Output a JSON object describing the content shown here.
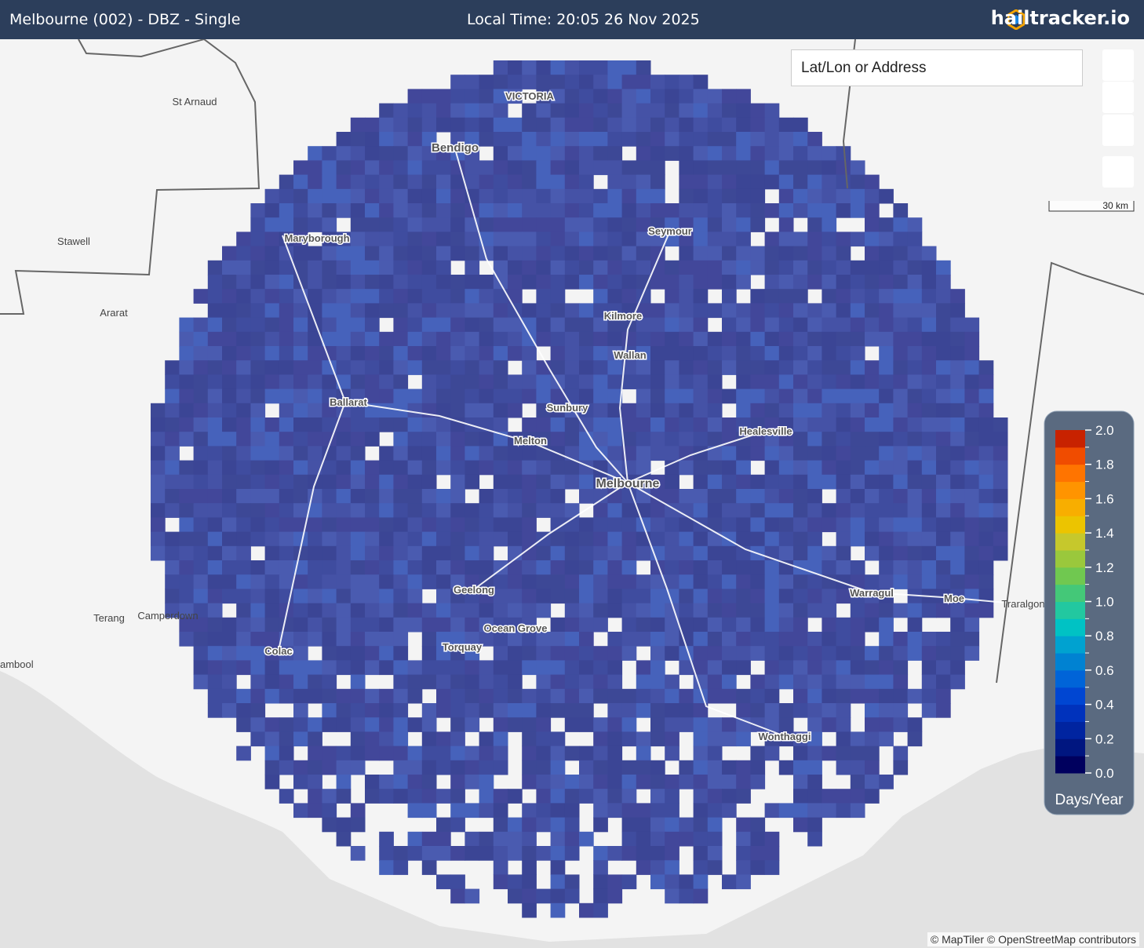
{
  "header": {
    "title": "Melbourne (002) - DBZ - Single",
    "local_time": "Local Time: 20:05 26 Nov 2025",
    "brand": "hailtracker.io"
  },
  "search": {
    "placeholder": "Lat/Lon or Address"
  },
  "scale_bar": "30 km",
  "places": [
    "St Arnaud",
    "Stawell",
    "Ararat",
    "Terang",
    "Camperdown",
    "ambool",
    "Traralgon",
    "VICTORIA",
    "Bendigo",
    "Maryborough",
    "Seymour",
    "Kilmore",
    "Wallan",
    "Sunbury",
    "Ballarat",
    "Melton",
    "Healesville",
    "Melbourne",
    "Geelong",
    "Ocean Grove",
    "Torquay",
    "Colac",
    "Warragul",
    "Moe",
    "Wonthaggi"
  ],
  "legend": {
    "title": "Days/Year",
    "colors": [
      "#00005e",
      "#001680",
      "#0024a0",
      "#0032bc",
      "#0046d2",
      "#0064d8",
      "#0082d2",
      "#00a2d0",
      "#00c2c4",
      "#22c8a0",
      "#44c878",
      "#70c850",
      "#9ac83c",
      "#c6c82c",
      "#ecc400",
      "#f8ae00",
      "#ff9400",
      "#ff7400",
      "#f04c00",
      "#c82200"
    ],
    "ticks": [
      {
        "value": 0,
        "label": "0.0"
      },
      {
        "value": 0.2,
        "label": "0.2"
      },
      {
        "value": 0.4,
        "label": "0.4"
      },
      {
        "value": 0.6,
        "label": "0.6"
      },
      {
        "value": 0.8,
        "label": "0.8"
      },
      {
        "value": 1,
        "label": "1.0"
      },
      {
        "value": 1.2,
        "label": "1.2"
      },
      {
        "value": 1.4,
        "label": "1.4"
      },
      {
        "value": 1.6,
        "label": "1.6"
      },
      {
        "value": 1.8,
        "label": "1.8"
      },
      {
        "value": 2,
        "label": "2.0"
      }
    ],
    "range": [
      0,
      2
    ]
  },
  "attribution": "© MapTiler © OpenStreetMap contributors"
}
